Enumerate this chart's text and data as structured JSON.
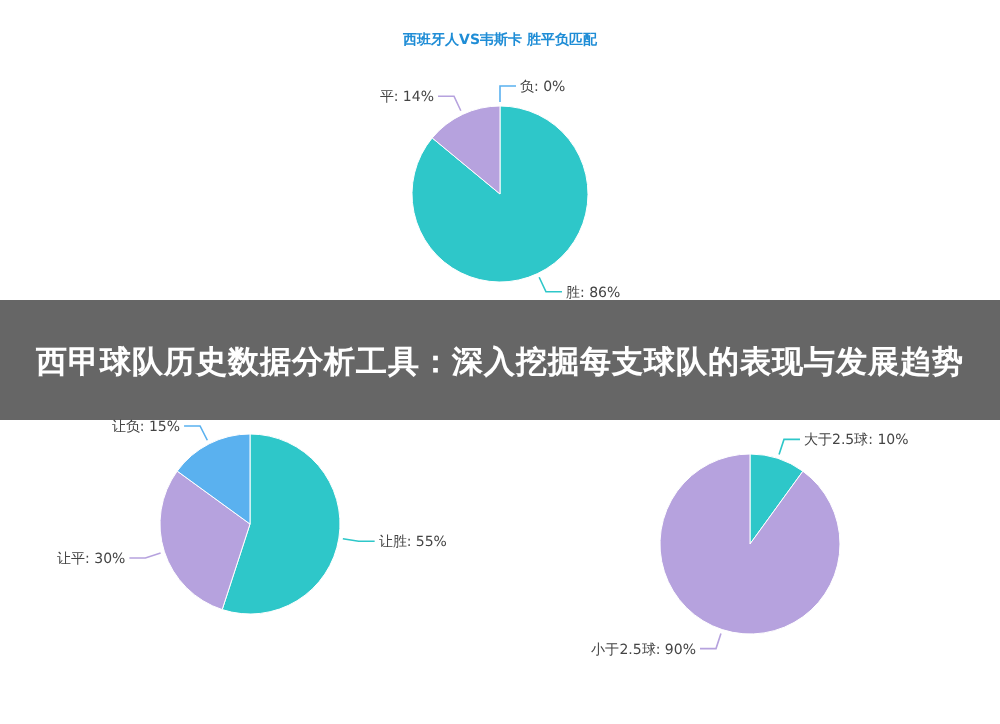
{
  "chart_data": [
    {
      "type": "pie",
      "title": "西班牙人VS韦斯卡 胜平负匹配",
      "categories": [
        "胜",
        "平",
        "负"
      ],
      "values": [
        86,
        14,
        0
      ],
      "value_labels": [
        "86%",
        "14%",
        "0%"
      ],
      "colors": [
        "#2ec7c9",
        "#b6a2de",
        "#5ab1ef"
      ]
    },
    {
      "type": "other",
      "title": "西甲球队历史数据分析工具：深入挖掘每支球队的表现与发展趋势"
    },
    {
      "type": "pie",
      "categories": [
        "让胜",
        "让平",
        "让负"
      ],
      "values": [
        55,
        30,
        15
      ],
      "value_labels": [
        "55%",
        "30%",
        "15%"
      ],
      "colors": [
        "#2ec7c9",
        "#b6a2de",
        "#5ab1ef"
      ]
    },
    {
      "type": "pie",
      "categories": [
        "大于2.5球",
        "小于2.5球"
      ],
      "values": [
        10,
        90
      ],
      "value_labels": [
        "10%",
        "90%"
      ],
      "colors": [
        "#2ec7c9",
        "#b6a2de"
      ]
    }
  ]
}
